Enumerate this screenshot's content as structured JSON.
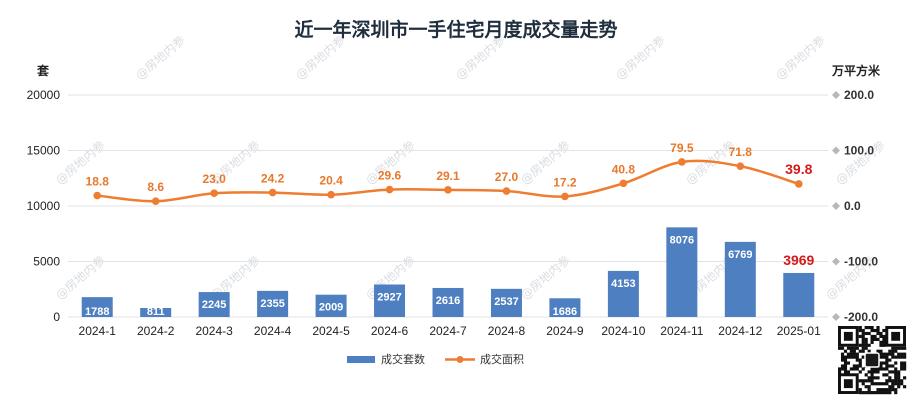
{
  "chart_data": {
    "type": "bar+line",
    "title": "近一年深圳市一手住宅月度成交量走势",
    "left_axis": {
      "unit_label": "套",
      "ylim": [
        0,
        20000
      ],
      "ticks": [
        0,
        5000,
        10000,
        15000,
        20000
      ]
    },
    "right_axis": {
      "unit_label": "万平方米",
      "ylim": [
        -200,
        200
      ],
      "ticks": [
        "-200.0",
        "-100.0",
        "0.0",
        "100.0",
        "200.0"
      ],
      "tick_values": [
        -200,
        -100,
        0,
        100,
        200
      ]
    },
    "categories": [
      "2024-1",
      "2024-2",
      "2024-3",
      "2024-4",
      "2024-5",
      "2024-6",
      "2024-7",
      "2024-8",
      "2024-9",
      "2024-10",
      "2024-11",
      "2024-12",
      "2025-01"
    ],
    "series": [
      {
        "name": "成交套数",
        "type": "bar",
        "axis": "left",
        "color": "#4e7fc1",
        "highlight_color": "#d61a1a",
        "values": [
          1788,
          811,
          2245,
          2355,
          2009,
          2927,
          2616,
          2537,
          1686,
          4153,
          8076,
          6769,
          3969
        ]
      },
      {
        "name": "成交面积",
        "type": "line",
        "axis": "right",
        "color": "#ee7d31",
        "highlight_color": "#d61a1a",
        "values": [
          18.8,
          8.6,
          23.0,
          24.2,
          20.4,
          29.6,
          29.1,
          27.0,
          17.2,
          40.8,
          79.5,
          71.8,
          39.8
        ],
        "labels": [
          "18.8",
          "8.6",
          "23.0",
          "24.2",
          "20.4",
          "29.6",
          "29.1",
          "27.0",
          "17.2",
          "40.8",
          "79.5",
          "71.8",
          "39.8"
        ]
      }
    ],
    "grid": true,
    "legend_position": "bottom-center",
    "highlight_last": true
  },
  "watermark": {
    "text": "@房地内参"
  }
}
